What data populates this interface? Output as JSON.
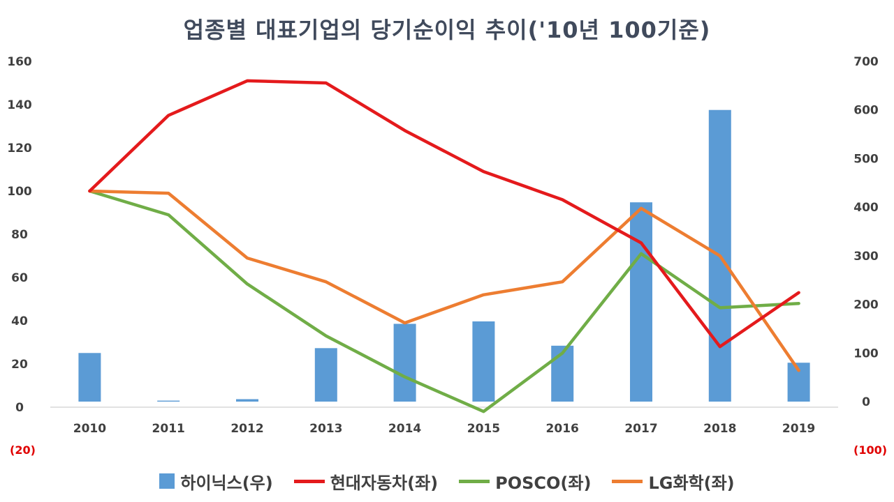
{
  "chart_data": {
    "type": "bar+line",
    "title": "업종별 대표기업의 당기순이익 추이('10년 100기준)",
    "categories": [
      "2010",
      "2011",
      "2012",
      "2013",
      "2014",
      "2015",
      "2016",
      "2017",
      "2018",
      "2019"
    ],
    "left_axis": {
      "ticks": [
        "160",
        "140",
        "120",
        "100",
        "80",
        "60",
        "40",
        "20",
        "0"
      ],
      "ylim": [
        -20,
        160
      ],
      "min_label": "(20)"
    },
    "right_axis": {
      "ticks": [
        "700",
        "600",
        "500",
        "400",
        "300",
        "200",
        "100",
        "0"
      ],
      "ylim": [
        -100,
        700
      ],
      "min_label": "(100)"
    },
    "series": [
      {
        "name": "하이닉스(우)",
        "type": "bar",
        "axis": "right",
        "color": "#5b9bd5",
        "values": [
          100,
          2,
          5,
          110,
          160,
          165,
          115,
          410,
          600,
          80
        ]
      },
      {
        "name": "현대자동차(좌)",
        "type": "line",
        "axis": "left",
        "color": "#e41a1c",
        "values": [
          100,
          135,
          151,
          150,
          128,
          109,
          96,
          76,
          28,
          53
        ]
      },
      {
        "name": "POSCO(좌)",
        "type": "line",
        "axis": "left",
        "color": "#70ad47",
        "values": [
          100,
          89,
          57,
          33,
          14,
          -2,
          25,
          71,
          46,
          48
        ]
      },
      {
        "name": "LG화학(좌)",
        "type": "line",
        "axis": "left",
        "color": "#ed7d31",
        "values": [
          100,
          99,
          69,
          58,
          39,
          52,
          58,
          92,
          70,
          17
        ]
      }
    ],
    "grid": false,
    "legend_position": "bottom"
  }
}
